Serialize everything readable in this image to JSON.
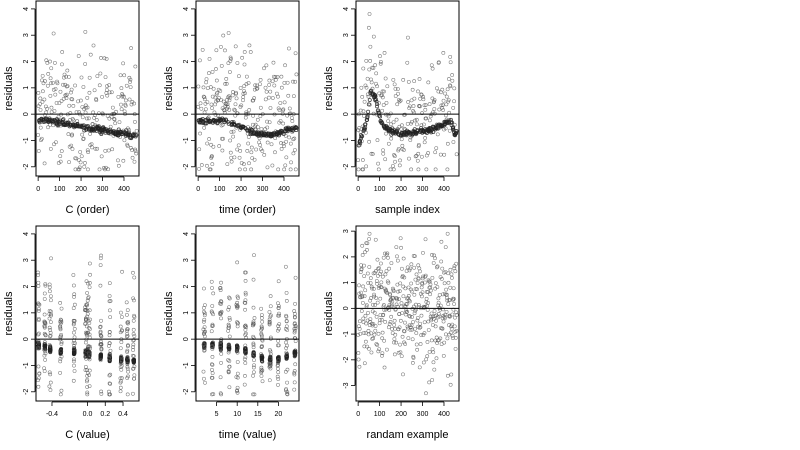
{
  "chart_data": [
    {
      "type": "scatter",
      "xlabel": "C (order)",
      "ylabel": "residuals",
      "xlim": [
        -10,
        470
      ],
      "ylim": [
        -2.35,
        4.3
      ],
      "xticks": [
        0,
        100,
        200,
        300,
        400
      ],
      "yticks": [
        -2,
        -1,
        0,
        1,
        2,
        3,
        4
      ],
      "hline": 0,
      "marker": "open-circle",
      "marker_color": "#555555",
      "pattern": "band",
      "n_points": 460,
      "band": [
        [
          0,
          -0.25
        ],
        [
          40,
          -0.22
        ],
        [
          80,
          -0.3
        ],
        [
          120,
          -0.32
        ],
        [
          160,
          -0.45
        ],
        [
          200,
          -0.5
        ],
        [
          240,
          -0.55
        ],
        [
          280,
          -0.55
        ],
        [
          320,
          -0.65
        ],
        [
          360,
          -0.72
        ],
        [
          400,
          -0.75
        ],
        [
          450,
          -0.8
        ]
      ],
      "scatter_range": [
        -2.1,
        4.0
      ]
    },
    {
      "type": "scatter",
      "xlabel": "time (order)",
      "ylabel": "residuals",
      "xlim": [
        -10,
        470
      ],
      "ylim": [
        -2.35,
        4.3
      ],
      "xticks": [
        0,
        100,
        200,
        300,
        400
      ],
      "yticks": [
        -2,
        -1,
        0,
        1,
        2,
        3,
        4
      ],
      "hline": 0,
      "marker": "open-circle",
      "marker_color": "#555555",
      "pattern": "band",
      "n_points": 460,
      "band": [
        [
          0,
          -0.25
        ],
        [
          60,
          -0.25
        ],
        [
          120,
          -0.28
        ],
        [
          180,
          -0.38
        ],
        [
          220,
          -0.55
        ],
        [
          260,
          -0.68
        ],
        [
          300,
          -0.78
        ],
        [
          340,
          -0.78
        ],
        [
          380,
          -0.72
        ],
        [
          420,
          -0.6
        ],
        [
          450,
          -0.55
        ]
      ],
      "scatter_range": [
        -2.1,
        4.0
      ]
    },
    {
      "type": "scatter",
      "xlabel": "sample index",
      "ylabel": "residuals",
      "xlim": [
        -10,
        470
      ],
      "ylim": [
        -2.35,
        4.3
      ],
      "xticks": [
        0,
        100,
        200,
        300,
        400
      ],
      "yticks": [
        -2,
        -1,
        0,
        1,
        2,
        3,
        4
      ],
      "hline": 0,
      "marker": "open-circle",
      "marker_color": "#555555",
      "pattern": "band",
      "n_points": 460,
      "band": [
        [
          0,
          -1.3
        ],
        [
          40,
          -0.3
        ],
        [
          60,
          0.9
        ],
        [
          80,
          0.6
        ],
        [
          110,
          -0.4
        ],
        [
          150,
          -0.6
        ],
        [
          200,
          -0.75
        ],
        [
          250,
          -0.7
        ],
        [
          300,
          -0.65
        ],
        [
          350,
          -0.55
        ],
        [
          400,
          -0.4
        ],
        [
          430,
          -0.2
        ],
        [
          450,
          -0.75
        ]
      ],
      "scatter_range": [
        -2.1,
        4.0
      ]
    },
    {
      "type": "scatter",
      "xlabel": "C (value)",
      "ylabel": "residuals",
      "xlim": [
        -0.58,
        0.58
      ],
      "ylim": [
        -2.35,
        4.3
      ],
      "xticks": [
        -0.4,
        0.0,
        0.2,
        0.4
      ],
      "ytick_decimals": 1,
      "yticks": [
        -2,
        -1,
        0,
        1,
        2,
        3,
        4
      ],
      "hline": 0,
      "marker": "open-circle",
      "marker_color": "#555555",
      "pattern": "columns",
      "columns": [
        [
          -0.55,
          -0.25
        ],
        [
          -0.48,
          -0.28
        ],
        [
          -0.42,
          -0.4
        ],
        [
          -0.3,
          -0.45
        ],
        [
          -0.15,
          -0.5
        ],
        [
          -0.02,
          -0.55
        ],
        [
          0.0,
          -0.5
        ],
        [
          0.02,
          -0.58
        ],
        [
          0.15,
          -0.65
        ],
        [
          0.25,
          -0.72
        ],
        [
          0.38,
          -0.75
        ],
        [
          0.45,
          -0.78
        ],
        [
          0.52,
          -0.8
        ]
      ],
      "scatter_range": [
        -2.1,
        4.0
      ]
    },
    {
      "type": "scatter",
      "xlabel": "time (value)",
      "ylabel": "residuals",
      "xlim": [
        0,
        25
      ],
      "ylim": [
        -2.35,
        4.3
      ],
      "xticks": [
        5,
        10,
        15,
        20
      ],
      "yticks": [
        -2,
        -1,
        0,
        1,
        2,
        3,
        4
      ],
      "hline": 0,
      "marker": "open-circle",
      "marker_color": "#555555",
      "pattern": "columns",
      "columns": [
        [
          2,
          -0.25
        ],
        [
          4,
          -0.22
        ],
        [
          6,
          -0.25
        ],
        [
          8,
          -0.3
        ],
        [
          10,
          -0.35
        ],
        [
          12,
          -0.45
        ],
        [
          14,
          -0.6
        ],
        [
          16,
          -0.72
        ],
        [
          18,
          -0.78
        ],
        [
          20,
          -0.75
        ],
        [
          22,
          -0.68
        ],
        [
          24,
          -0.55
        ]
      ],
      "scatter_range": [
        -2.1,
        4.0
      ]
    },
    {
      "type": "scatter",
      "xlabel": "randam example",
      "ylabel": "residuals",
      "xlim": [
        -10,
        470
      ],
      "ylim": [
        -3.6,
        3.2
      ],
      "xticks": [
        0,
        100,
        200,
        300,
        400
      ],
      "yticks": [
        -3,
        -2,
        -1,
        0,
        1,
        2,
        3
      ],
      "hline": 0,
      "marker": "open-circle",
      "marker_color": "#555555",
      "pattern": "random",
      "n_points": 460,
      "scatter_range": [
        -3.3,
        2.9
      ]
    }
  ]
}
